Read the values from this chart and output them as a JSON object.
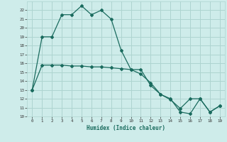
{
  "title": "",
  "xlabel": "Humidex (Indice chaleur)",
  "bg_color": "#ceecea",
  "grid_color": "#aed4d0",
  "line_color": "#1a6b5e",
  "line1_x": [
    0,
    1,
    2,
    3,
    4,
    5,
    6,
    7,
    8,
    9,
    10,
    11,
    12,
    13,
    14,
    15,
    16,
    17,
    18,
    19
  ],
  "line1_y": [
    13,
    19,
    19,
    21.5,
    21.5,
    22.5,
    21.5,
    22,
    21,
    17.5,
    15.3,
    15.3,
    13.5,
    12.5,
    12,
    10.5,
    10.3,
    12,
    10.5,
    11.2
  ],
  "line2_x": [
    0,
    1,
    2,
    3,
    4,
    5,
    6,
    7,
    8,
    9,
    10,
    11,
    12,
    13,
    14,
    15,
    16,
    17,
    18,
    19
  ],
  "line2_y": [
    13,
    15.8,
    15.8,
    15.8,
    15.7,
    15.7,
    15.6,
    15.6,
    15.5,
    15.4,
    15.3,
    14.8,
    13.8,
    12.5,
    11.9,
    10.9,
    12,
    12,
    10.5,
    11.2
  ],
  "ylim": [
    10,
    23
  ],
  "xlim": [
    -0.5,
    19.5
  ],
  "yticks": [
    10,
    11,
    12,
    13,
    14,
    15,
    16,
    17,
    18,
    19,
    20,
    21,
    22
  ],
  "xticks": [
    0,
    1,
    2,
    3,
    4,
    5,
    6,
    7,
    8,
    9,
    10,
    11,
    12,
    13,
    14,
    15,
    16,
    17,
    18,
    19
  ]
}
